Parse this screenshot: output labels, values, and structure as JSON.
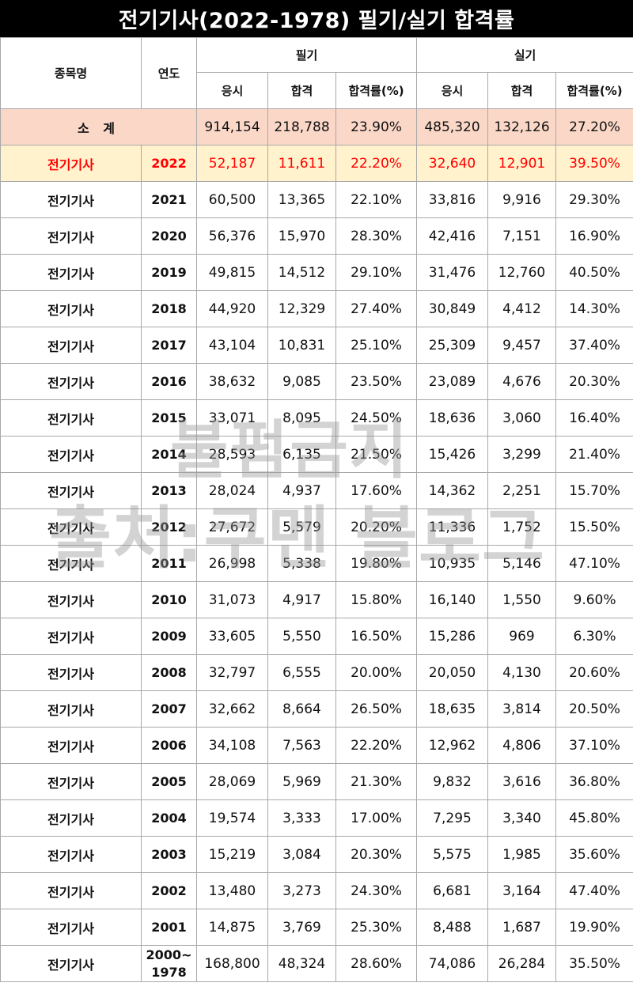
{
  "title": "전기기사(2022-1978) 필기/실기 합격률",
  "header": {
    "name": "종목명",
    "year": "연도",
    "written": "필기",
    "practical": "실기",
    "applicants": "응시",
    "passed": "합격",
    "rate": "합격률(%)"
  },
  "total": {
    "label": "소 계",
    "w_app": "914,154",
    "w_pass": "218,788",
    "w_rate": "23.90%",
    "p_app": "485,320",
    "p_pass": "132,126",
    "p_rate": "27.20%"
  },
  "rows": [
    {
      "name": "전기기사",
      "year": "2022",
      "w_app": "52,187",
      "w_pass": "11,611",
      "w_rate": "22.20%",
      "p_app": "32,640",
      "p_pass": "12,901",
      "p_rate": "39.50%"
    },
    {
      "name": "전기기사",
      "year": "2021",
      "w_app": "60,500",
      "w_pass": "13,365",
      "w_rate": "22.10%",
      "p_app": "33,816",
      "p_pass": "9,916",
      "p_rate": "29.30%"
    },
    {
      "name": "전기기사",
      "year": "2020",
      "w_app": "56,376",
      "w_pass": "15,970",
      "w_rate": "28.30%",
      "p_app": "42,416",
      "p_pass": "7,151",
      "p_rate": "16.90%"
    },
    {
      "name": "전기기사",
      "year": "2019",
      "w_app": "49,815",
      "w_pass": "14,512",
      "w_rate": "29.10%",
      "p_app": "31,476",
      "p_pass": "12,760",
      "p_rate": "40.50%"
    },
    {
      "name": "전기기사",
      "year": "2018",
      "w_app": "44,920",
      "w_pass": "12,329",
      "w_rate": "27.40%",
      "p_app": "30,849",
      "p_pass": "4,412",
      "p_rate": "14.30%"
    },
    {
      "name": "전기기사",
      "year": "2017",
      "w_app": "43,104",
      "w_pass": "10,831",
      "w_rate": "25.10%",
      "p_app": "25,309",
      "p_pass": "9,457",
      "p_rate": "37.40%"
    },
    {
      "name": "전기기사",
      "year": "2016",
      "w_app": "38,632",
      "w_pass": "9,085",
      "w_rate": "23.50%",
      "p_app": "23,089",
      "p_pass": "4,676",
      "p_rate": "20.30%"
    },
    {
      "name": "전기기사",
      "year": "2015",
      "w_app": "33,071",
      "w_pass": "8,095",
      "w_rate": "24.50%",
      "p_app": "18,636",
      "p_pass": "3,060",
      "p_rate": "16.40%"
    },
    {
      "name": "전기기사",
      "year": "2014",
      "w_app": "28,593",
      "w_pass": "6,135",
      "w_rate": "21.50%",
      "p_app": "15,426",
      "p_pass": "3,299",
      "p_rate": "21.40%"
    },
    {
      "name": "전기기사",
      "year": "2013",
      "w_app": "28,024",
      "w_pass": "4,937",
      "w_rate": "17.60%",
      "p_app": "14,362",
      "p_pass": "2,251",
      "p_rate": "15.70%"
    },
    {
      "name": "전기기사",
      "year": "2012",
      "w_app": "27,672",
      "w_pass": "5,579",
      "w_rate": "20.20%",
      "p_app": "11,336",
      "p_pass": "1,752",
      "p_rate": "15.50%"
    },
    {
      "name": "전기기사",
      "year": "2011",
      "w_app": "26,998",
      "w_pass": "5,338",
      "w_rate": "19.80%",
      "p_app": "10,935",
      "p_pass": "5,146",
      "p_rate": "47.10%"
    },
    {
      "name": "전기기사",
      "year": "2010",
      "w_app": "31,073",
      "w_pass": "4,917",
      "w_rate": "15.80%",
      "p_app": "16,140",
      "p_pass": "1,550",
      "p_rate": "9.60%"
    },
    {
      "name": "전기기사",
      "year": "2009",
      "w_app": "33,605",
      "w_pass": "5,550",
      "w_rate": "16.50%",
      "p_app": "15,286",
      "p_pass": "969",
      "p_rate": "6.30%"
    },
    {
      "name": "전기기사",
      "year": "2008",
      "w_app": "32,797",
      "w_pass": "6,555",
      "w_rate": "20.00%",
      "p_app": "20,050",
      "p_pass": "4,130",
      "p_rate": "20.60%"
    },
    {
      "name": "전기기사",
      "year": "2007",
      "w_app": "32,662",
      "w_pass": "8,664",
      "w_rate": "26.50%",
      "p_app": "18,635",
      "p_pass": "3,814",
      "p_rate": "20.50%"
    },
    {
      "name": "전기기사",
      "year": "2006",
      "w_app": "34,108",
      "w_pass": "7,563",
      "w_rate": "22.20%",
      "p_app": "12,962",
      "p_pass": "4,806",
      "p_rate": "37.10%"
    },
    {
      "name": "전기기사",
      "year": "2005",
      "w_app": "28,069",
      "w_pass": "5,969",
      "w_rate": "21.30%",
      "p_app": "9,832",
      "p_pass": "3,616",
      "p_rate": "36.80%"
    },
    {
      "name": "전기기사",
      "year": "2004",
      "w_app": "19,574",
      "w_pass": "3,333",
      "w_rate": "17.00%",
      "p_app": "7,295",
      "p_pass": "3,340",
      "p_rate": "45.80%"
    },
    {
      "name": "전기기사",
      "year": "2003",
      "w_app": "15,219",
      "w_pass": "3,084",
      "w_rate": "20.30%",
      "p_app": "5,575",
      "p_pass": "1,985",
      "p_rate": "35.60%"
    },
    {
      "name": "전기기사",
      "year": "2002",
      "w_app": "13,480",
      "w_pass": "3,273",
      "w_rate": "24.30%",
      "p_app": "6,681",
      "p_pass": "3,164",
      "p_rate": "47.40%"
    },
    {
      "name": "전기기사",
      "year": "2001",
      "w_app": "14,875",
      "w_pass": "3,769",
      "w_rate": "25.30%",
      "p_app": "8,488",
      "p_pass": "1,687",
      "p_rate": "19.90%"
    },
    {
      "name": "전기기사",
      "year": "2000~ 1978",
      "w_app": "168,800",
      "w_pass": "48,324",
      "w_rate": "28.60%",
      "p_app": "74,086",
      "p_pass": "26,284",
      "p_rate": "35.50%"
    }
  ],
  "watermark": {
    "line1": "불펌금지",
    "line2": "출처:쿠멘 블로그"
  },
  "colors": {
    "title_bg": "#000000",
    "total_bg": "#fbd7c8",
    "highlight_bg": "#fff2cc",
    "highlight_text": "#ff0000"
  }
}
